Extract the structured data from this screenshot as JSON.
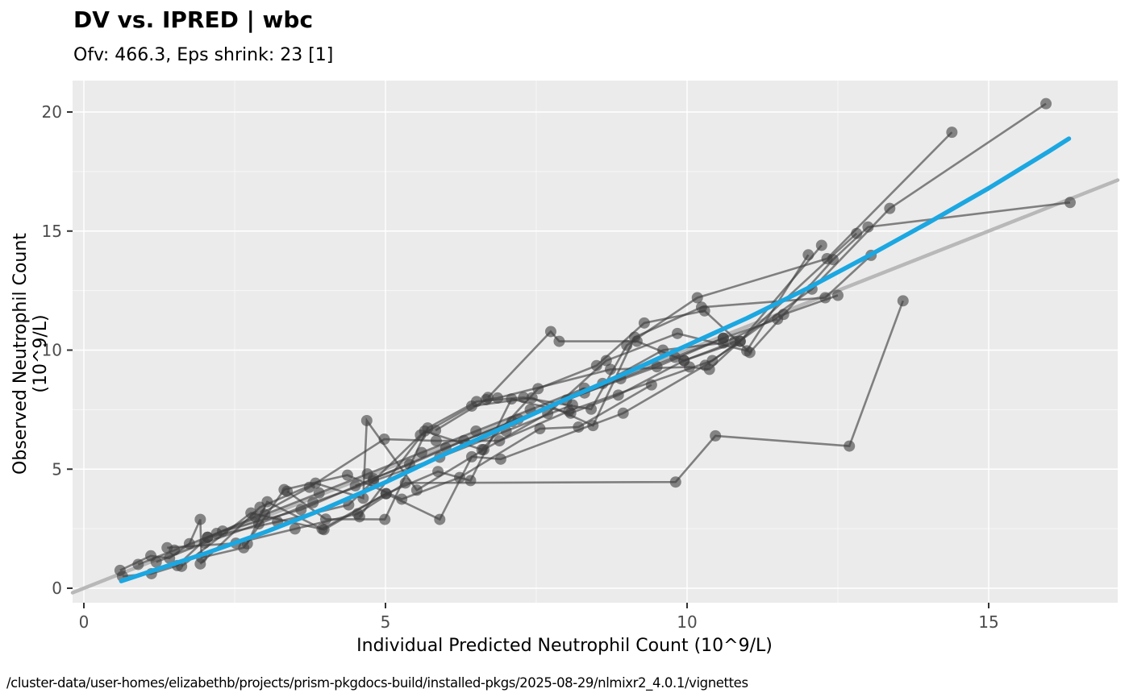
{
  "chart_data": {
    "type": "scatter",
    "title": "DV vs. IPRED | wbc",
    "subtitle": "Ofv: 466.3, Eps shrink: 23 [1]",
    "xlabel": "Individual Predicted Neutrophil Count (10^9/L)",
    "ylabel": "Observed Neutrophil Count (10^9/L)",
    "caption": "/cluster-data/user-homes/elizabethb/projects/prism-pkgdocs-build/installed-pkgs/2025-08-29/nlmixr2_4.0.1/vignettes",
    "xticks": [
      0,
      5,
      10,
      15
    ],
    "yticks": [
      0,
      5,
      10,
      15,
      20
    ],
    "xlim": [
      -0.19,
      17.14
    ],
    "ylim": [
      -0.6,
      21.3
    ],
    "grid": true,
    "legend_position": "none",
    "colors": {
      "panel_bg": "#EBEBEB",
      "grid_major": "#FFFFFF",
      "grid_minor": "#F7F7F7",
      "points_and_lines": "#3D3D3D",
      "smooth_line": "#1BA7E1",
      "identity_line": "#B8B8B8",
      "tick_label": "#4D4D4D",
      "text": "#000000"
    },
    "identity_line": {
      "slope": 1,
      "intercept": 0
    },
    "smooth_line": [
      [
        0.62,
        0.3
      ],
      [
        2,
        1.45
      ],
      [
        3,
        2.35
      ],
      [
        4,
        3.35
      ],
      [
        5,
        4.45
      ],
      [
        6,
        5.65
      ],
      [
        7,
        6.8
      ],
      [
        8,
        7.95
      ],
      [
        9,
        9.05
      ],
      [
        10,
        10.2
      ],
      [
        11,
        11.35
      ],
      [
        12,
        12.6
      ],
      [
        13,
        13.95
      ],
      [
        14,
        15.35
      ],
      [
        15,
        16.8
      ],
      [
        16,
        18.35
      ],
      [
        16.33,
        18.88
      ]
    ],
    "subjects": [
      [
        [
          0.6,
          0.75
        ],
        [
          1.11,
          1.36
        ],
        [
          1.42,
          1.26
        ],
        [
          1.75,
          1.87
        ],
        [
          1.93,
          2.89
        ],
        [
          1.95,
          1.29
        ],
        [
          2.65,
          1.7
        ],
        [
          3.32,
          4.14
        ],
        [
          4.37,
          4.75
        ],
        [
          5.27,
          3.74
        ],
        [
          6.23,
          4.65
        ],
        [
          7.56,
          6.7
        ],
        [
          8.2,
          6.77
        ],
        [
          9.41,
          8.54
        ]
      ],
      [
        [
          0.64,
          0.5
        ],
        [
          1.12,
          0.61
        ],
        [
          1.55,
          0.95
        ],
        [
          2.05,
          2.14
        ],
        [
          2.84,
          3.0
        ],
        [
          3.74,
          4.24
        ],
        [
          4.98,
          6.26
        ],
        [
          5.84,
          6.19
        ],
        [
          6.89,
          6.19
        ],
        [
          8.04,
          7.44
        ],
        [
          10.42,
          9.56
        ],
        [
          12.07,
          12.56
        ],
        [
          13.36,
          15.95
        ],
        [
          15.95,
          20.35
        ]
      ],
      [
        [
          1.38,
          1.7
        ],
        [
          2.52,
          1.89
        ],
        [
          3.5,
          2.49
        ],
        [
          4.54,
          3.13
        ],
        [
          5.33,
          4.42
        ],
        [
          9.81,
          4.46
        ],
        [
          10.47,
          6.4
        ],
        [
          12.69,
          5.97
        ],
        [
          13.58,
          12.07
        ]
      ],
      [
        [
          1.93,
          1.02
        ],
        [
          2.92,
          3.4
        ],
        [
          3.84,
          4.41
        ],
        [
          4.63,
          3.78
        ],
        [
          4.69,
          7.04
        ],
        [
          5.52,
          4.12
        ],
        [
          6.63,
          5.82
        ],
        [
          7.69,
          7.34
        ],
        [
          8.66,
          9.56
        ],
        [
          9.84,
          10.7
        ],
        [
          10.99,
          9.97
        ],
        [
          12.01,
          14.0
        ]
      ],
      [
        [
          2.71,
          1.87
        ],
        [
          3.04,
          3.63
        ],
        [
          3.95,
          2.49
        ],
        [
          5.01,
          3.97
        ],
        [
          5.87,
          4.9
        ],
        [
          6.41,
          4.52
        ],
        [
          7.09,
          7.95
        ],
        [
          8.07,
          7.35
        ],
        [
          8.86,
          8.11
        ],
        [
          9.95,
          9.56
        ],
        [
          10.88,
          10.37
        ],
        [
          12.23,
          14.4
        ]
      ],
      [
        [
          3.37,
          4.07
        ],
        [
          4.01,
          2.9
        ],
        [
          4.99,
          2.89
        ],
        [
          5.7,
          6.73
        ],
        [
          6.51,
          7.84
        ],
        [
          7.29,
          8.01
        ],
        [
          8.41,
          7.52
        ],
        [
          9.0,
          10.2
        ],
        [
          10.17,
          12.2
        ],
        [
          12.32,
          13.84
        ],
        [
          14.39,
          19.15
        ]
      ],
      [
        [
          2.05,
          2.14
        ],
        [
          3.21,
          2.79
        ],
        [
          4.39,
          3.5
        ],
        [
          5.58,
          6.43
        ],
        [
          6.43,
          7.65
        ],
        [
          7.43,
          8.0
        ],
        [
          8.44,
          6.83
        ],
        [
          9.13,
          10.54
        ],
        [
          10.24,
          11.8
        ],
        [
          12.29,
          12.2
        ],
        [
          13.05,
          13.98
        ]
      ],
      [
        [
          4.57,
          3.0
        ],
        [
          5.65,
          6.6
        ],
        [
          6.6,
          5.82
        ],
        [
          7.53,
          8.38
        ],
        [
          8.5,
          9.35
        ],
        [
          9.29,
          11.14
        ],
        [
          10.29,
          11.65
        ],
        [
          11.04,
          9.9
        ],
        [
          12.42,
          13.8
        ],
        [
          13.0,
          15.17
        ],
        [
          16.35,
          16.2
        ]
      ],
      [
        [
          1.62,
          0.92
        ],
        [
          2.77,
          3.16
        ],
        [
          3.98,
          2.46
        ],
        [
          5.01,
          3.97
        ],
        [
          5.9,
          2.89
        ],
        [
          6.43,
          5.52
        ],
        [
          6.91,
          5.42
        ],
        [
          8.94,
          7.35
        ],
        [
          10.3,
          9.36
        ],
        [
          10.88,
          10.37
        ]
      ],
      [
        [
          2.3,
          2.4
        ],
        [
          3.6,
          3.3
        ],
        [
          4.8,
          4.6
        ],
        [
          6.0,
          5.9
        ],
        [
          7.2,
          7.1
        ],
        [
          8.3,
          8.2
        ],
        [
          9.5,
          9.3
        ],
        [
          10.6,
          10.5
        ],
        [
          11.5,
          11.3
        ]
      ],
      [
        [
          6.7,
          8.01
        ],
        [
          7.74,
          10.78
        ],
        [
          7.88,
          10.37
        ],
        [
          9.17,
          10.37
        ],
        [
          9.95,
          9.56
        ],
        [
          10.79,
          10.37
        ]
      ],
      [
        [
          5.83,
          6.63
        ],
        [
          6.67,
          7.92
        ],
        [
          6.86,
          7.99
        ],
        [
          8.73,
          9.19
        ],
        [
          10.04,
          9.29
        ],
        [
          10.37,
          9.19
        ],
        [
          12.81,
          14.9
        ]
      ],
      [
        [
          0.9,
          1.0
        ],
        [
          1.5,
          1.6
        ],
        [
          2.2,
          2.3
        ],
        [
          3.0,
          3.1
        ],
        [
          3.9,
          4.0
        ],
        [
          4.7,
          4.8
        ],
        [
          5.6,
          5.7
        ],
        [
          6.5,
          6.6
        ],
        [
          7.4,
          7.5
        ],
        [
          8.3,
          8.4
        ]
      ],
      [
        [
          4.5,
          4.3
        ],
        [
          5.4,
          5.2
        ],
        [
          6.3,
          6.2
        ],
        [
          7.1,
          7.0
        ],
        [
          8.0,
          7.9
        ],
        [
          8.9,
          8.8
        ],
        [
          9.8,
          9.7
        ],
        [
          10.6,
          10.5
        ]
      ],
      [
        [
          8.6,
          8.6
        ],
        [
          9.6,
          10.0
        ],
        [
          10.6,
          10.3
        ],
        [
          11.6,
          11.5
        ],
        [
          12.5,
          12.3
        ]
      ],
      [
        [
          1.2,
          1.1
        ],
        [
          2.0,
          1.9
        ],
        [
          2.9,
          2.7
        ],
        [
          3.8,
          3.6
        ],
        [
          4.8,
          4.5
        ],
        [
          5.9,
          5.5
        ],
        [
          7.0,
          6.6
        ],
        [
          8.1,
          7.7
        ]
      ]
    ]
  }
}
